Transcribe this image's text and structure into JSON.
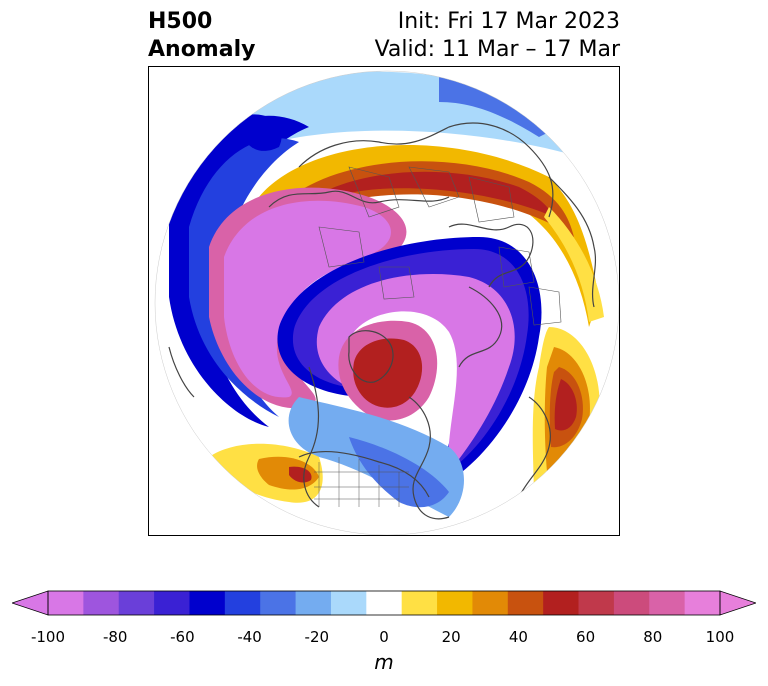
{
  "header": {
    "left_line1": "H500",
    "left_line2": "Anomaly",
    "init": "Init: Fri 17 Mar 2023",
    "valid": "Valid: 11 Mar – 17 Mar"
  },
  "map": {
    "projection": "polar-stereographic",
    "features": [
      "anomaly-shading",
      "coastlines",
      "country-borders",
      "state-borders"
    ]
  },
  "colorbar": {
    "unit": "m",
    "min": -100,
    "max": 100,
    "levels": [
      -100,
      -90,
      -80,
      -70,
      -60,
      -50,
      -40,
      -30,
      -20,
      -10,
      10,
      20,
      30,
      40,
      50,
      60,
      70,
      80,
      90,
      100
    ],
    "colors": [
      "#d877e6",
      "#9e55de",
      "#6a3fd9",
      "#3a21d4",
      "#0000cd",
      "#2340df",
      "#4b73e6",
      "#74acf0",
      "#aad9fb",
      "#ffffff",
      "#ffe044",
      "#f2b800",
      "#e28a06",
      "#c8520f",
      "#b2201f",
      "#c0394b",
      "#cc4b7c",
      "#d962a8",
      "#e77fdb"
    ],
    "tick_labels": [
      "-100",
      "-80",
      "-60",
      "-40",
      "-20",
      "0",
      "20",
      "40",
      "60",
      "80",
      "100"
    ]
  }
}
